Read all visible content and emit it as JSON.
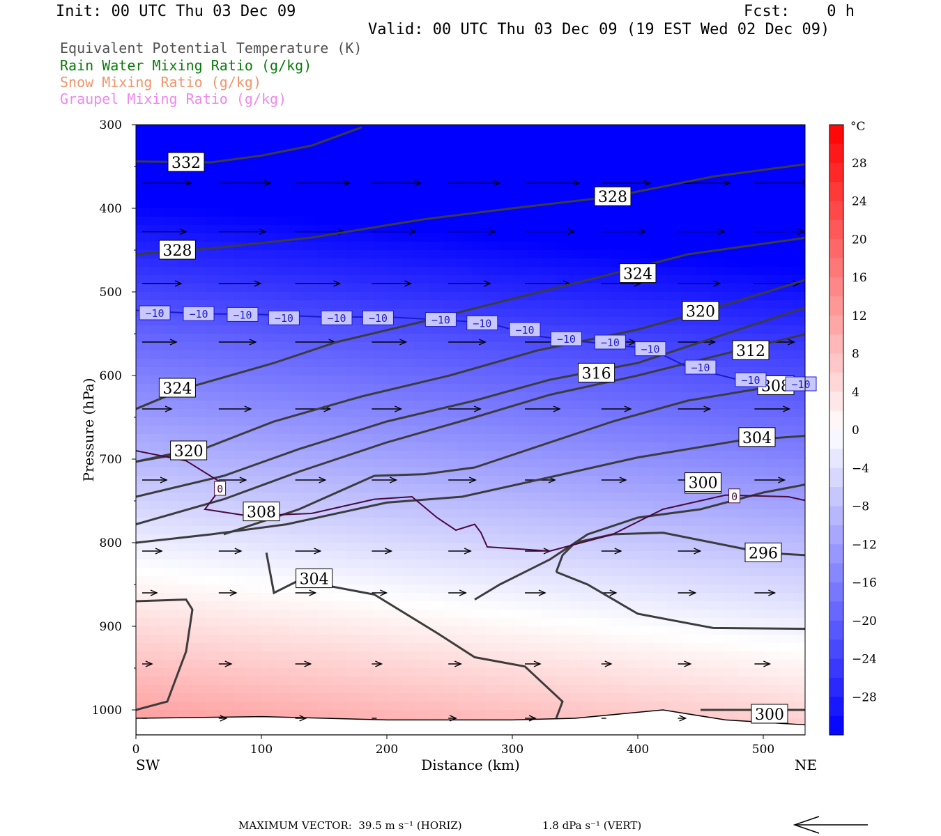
{
  "header": {
    "init": "Init: 00 UTC Thu 03 Dec 09",
    "fcst": "Fcst:    0 h",
    "valid": "Valid: 00 UTC Thu 03 Dec 09 (19 EST Wed 02 Dec 09)"
  },
  "legend": [
    {
      "label": "Equivalent Potential Temperature (K)",
      "color": "#505050"
    },
    {
      "label": "Rain Water Mixing Ratio (g/kg)",
      "color": "#0a7a0a"
    },
    {
      "label": "Snow Mixing Ratio (g/kg)",
      "color": "#f0956a"
    },
    {
      "label": "Graupel Mixing Ratio (g/kg)",
      "color": "#ee88ee"
    }
  ],
  "footer": {
    "max_vector": "MAXIMUM VECTOR:  39.5 m s⁻¹ (HORIZ)",
    "vert": "1.8 dPa s⁻¹ (VERT)"
  },
  "chart_data": {
    "type": "cross-section",
    "xlabel": "Distance (km)",
    "ylabel": "Pressure (hPa)",
    "x_ticks": [
      0,
      100,
      200,
      300,
      400,
      500
    ],
    "y_ticks": [
      300,
      400,
      500,
      600,
      700,
      800,
      900,
      1000
    ],
    "xlim": [
      0,
      535
    ],
    "ylim": [
      300,
      1030
    ],
    "x_end_labels": {
      "left": "SW",
      "right": "NE"
    },
    "colorbar": {
      "unit": "°C",
      "ticks": [
        28,
        24,
        20,
        16,
        12,
        8,
        4,
        0,
        -4,
        -8,
        -12,
        -16,
        -20,
        -24,
        -28
      ],
      "range": [
        -32,
        32
      ]
    },
    "theta_e_contours": [
      {
        "value": 332,
        "points": [
          [
            0,
            344
          ],
          [
            60,
            345
          ],
          [
            100,
            337
          ],
          [
            140,
            325
          ],
          [
            180,
            303
          ]
        ],
        "label_at": [
          40,
          345
        ]
      },
      {
        "value": 328,
        "points": [
          [
            0,
            455
          ],
          [
            60,
            448
          ],
          [
            140,
            435
          ],
          [
            230,
            413
          ],
          [
            300,
            400
          ],
          [
            380,
            386
          ],
          [
            460,
            362
          ],
          [
            535,
            347
          ]
        ],
        "label_at": [
          380,
          386
        ]
      },
      {
        "value": 328,
        "points": [
          [
            0,
            455
          ],
          [
            60,
            448
          ]
        ],
        "label_at": [
          33,
          450
        ]
      },
      {
        "value": 324,
        "points": [
          [
            0,
            640
          ],
          [
            40,
            615
          ],
          [
            110,
            585
          ],
          [
            160,
            560
          ],
          [
            230,
            535
          ],
          [
            290,
            512
          ],
          [
            370,
            482
          ],
          [
            440,
            455
          ],
          [
            535,
            435
          ]
        ],
        "label_at": [
          400,
          478
        ]
      },
      {
        "value": 324,
        "points": [
          [
            0,
            640
          ],
          [
            40,
            615
          ]
        ],
        "label_at": [
          33,
          615
        ]
      },
      {
        "value": 320,
        "points": [
          [
            0,
            703
          ],
          [
            50,
            690
          ],
          [
            110,
            655
          ],
          [
            180,
            625
          ],
          [
            250,
            600
          ],
          [
            320,
            570
          ],
          [
            400,
            545
          ],
          [
            460,
            520
          ],
          [
            535,
            485
          ]
        ],
        "label_at": [
          450,
          523
        ]
      },
      {
        "value": 320,
        "points": [
          [
            0,
            703
          ],
          [
            40,
            690
          ]
        ],
        "label_at": [
          42,
          690
        ]
      },
      {
        "value": 316,
        "points": [
          [
            0,
            745
          ],
          [
            70,
            720
          ],
          [
            130,
            688
          ],
          [
            200,
            655
          ],
          [
            270,
            630
          ],
          [
            330,
            605
          ],
          [
            400,
            585
          ],
          [
            535,
            518
          ]
        ],
        "label_at": [
          367,
          597
        ]
      },
      {
        "value": 312,
        "points": [
          [
            0,
            778
          ],
          [
            70,
            748
          ],
          [
            130,
            715
          ],
          [
            200,
            680
          ],
          [
            270,
            650
          ],
          [
            330,
            623
          ],
          [
            400,
            600
          ],
          [
            480,
            570
          ],
          [
            535,
            550
          ]
        ],
        "label_at": [
          490,
          570
        ]
      },
      {
        "value": 308,
        "points": [
          [
            70,
            790
          ],
          [
            130,
            760
          ],
          [
            190,
            720
          ],
          [
            230,
            718
          ],
          [
            270,
            710
          ],
          [
            320,
            685
          ],
          [
            380,
            655
          ],
          [
            440,
            630
          ],
          [
            500,
            615
          ],
          [
            535,
            615
          ]
        ],
        "label_at": [
          100,
          763
        ]
      },
      {
        "value": 308,
        "points": [
          [
            500,
            615
          ],
          [
            535,
            612
          ]
        ],
        "label_at": [
          510,
          612
        ]
      },
      {
        "value": 304,
        "points": [
          [
            0,
            800
          ],
          [
            60,
            790
          ],
          [
            120,
            778
          ],
          [
            200,
            752
          ],
          [
            260,
            745
          ],
          [
            320,
            725
          ],
          [
            400,
            698
          ],
          [
            480,
            678
          ],
          [
            535,
            672
          ]
        ],
        "label_at": [
          495,
          674
        ]
      },
      {
        "value": 304,
        "points": [
          [
            104,
            812
          ],
          [
            110,
            860
          ],
          [
            130,
            845
          ],
          [
            190,
            862
          ],
          [
            240,
            908
          ],
          [
            270,
            937
          ],
          [
            310,
            948
          ],
          [
            340,
            990
          ],
          [
            335,
            1010
          ]
        ],
        "label_at": [
          142,
          843
        ]
      },
      {
        "value": 300,
        "points": [
          [
            0,
            870
          ],
          [
            40,
            868
          ],
          [
            45,
            880
          ],
          [
            40,
            930
          ],
          [
            25,
            990
          ],
          [
            0,
            1000
          ]
        ],
        "label_at": [
          452,
          730
        ]
      },
      {
        "value": 300,
        "points": [
          [
            270,
            868
          ],
          [
            290,
            850
          ],
          [
            330,
            820
          ],
          [
            360,
            790
          ],
          [
            400,
            770
          ],
          [
            450,
            760
          ],
          [
            500,
            740
          ],
          [
            535,
            730
          ]
        ],
        "label_at": [
          452,
          728
        ]
      },
      {
        "value": 300,
        "points": [
          [
            450,
            1000
          ],
          [
            490,
            1000
          ],
          [
            535,
            1000
          ]
        ],
        "label_at": [
          505,
          1005
        ]
      },
      {
        "value": 296,
        "points": [
          [
            335,
            835
          ],
          [
            340,
            815
          ],
          [
            350,
            800
          ],
          [
            380,
            790
          ],
          [
            420,
            788
          ],
          [
            460,
            800
          ],
          [
            500,
            812
          ],
          [
            535,
            815
          ]
        ],
        "label_at": [
          500,
          812
        ]
      },
      {
        "value": 296,
        "points": [
          [
            335,
            835
          ],
          [
            360,
            850
          ],
          [
            400,
            885
          ],
          [
            460,
            902
          ],
          [
            535,
            903
          ]
        ],
        "label_at": [
          500,
          812
        ]
      }
    ],
    "temperature_contours": [
      {
        "value": -10,
        "color": "#1a1acc",
        "points": [
          [
            0,
            522
          ],
          [
            50,
            526
          ],
          [
            100,
            527
          ],
          [
            150,
            530
          ],
          [
            200,
            530
          ],
          [
            240,
            533
          ],
          [
            280,
            537
          ],
          [
            320,
            553
          ],
          [
            360,
            560
          ],
          [
            410,
            568
          ],
          [
            440,
            590
          ],
          [
            480,
            605
          ],
          [
            535,
            610
          ]
        ],
        "labels_at": [
          [
            15,
            525
          ],
          [
            50,
            526
          ],
          [
            85,
            527
          ],
          [
            118,
            531
          ],
          [
            160,
            531
          ],
          [
            193,
            531
          ],
          [
            243,
            533
          ],
          [
            276,
            537
          ],
          [
            310,
            545
          ],
          [
            343,
            556
          ],
          [
            378,
            560
          ],
          [
            410,
            568
          ],
          [
            450,
            590
          ],
          [
            490,
            605
          ],
          [
            530,
            610
          ]
        ]
      },
      {
        "value": 0,
        "color": "#4a0a3a",
        "points": [
          [
            0,
            690
          ],
          [
            40,
            702
          ],
          [
            70,
            730
          ],
          [
            55,
            760
          ],
          [
            90,
            768
          ],
          [
            140,
            765
          ],
          [
            190,
            748
          ],
          [
            220,
            745
          ],
          [
            240,
            770
          ],
          [
            255,
            785
          ],
          [
            270,
            778
          ],
          [
            275,
            788
          ],
          [
            280,
            805
          ],
          [
            330,
            810
          ],
          [
            380,
            790
          ],
          [
            420,
            760
          ],
          [
            470,
            743
          ],
          [
            520,
            745
          ],
          [
            535,
            750
          ]
        ],
        "labels_at": [
          [
            67,
            735
          ],
          [
            477,
            744
          ]
        ]
      }
    ],
    "wind_vectors_rows_hpa": [
      370,
      428,
      490,
      560,
      640,
      725,
      810,
      860,
      945,
      1010
    ]
  }
}
